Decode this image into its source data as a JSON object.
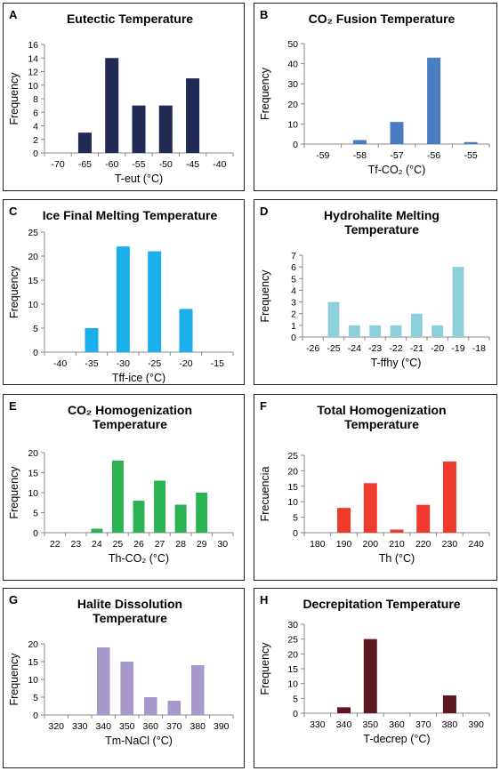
{
  "panels": [
    {
      "letter": "A",
      "title_lines": [
        "Eutectic Temperature"
      ],
      "xlabel": "T-eut (°C)",
      "ylabel": "Frequency",
      "color": "#1f2a55",
      "chart_data": {
        "type": "bar",
        "categories": [
          "-70",
          "-65",
          "-60",
          "-55",
          "-50",
          "-45",
          "-40"
        ],
        "values": [
          0,
          3,
          14,
          7,
          7,
          11,
          0
        ],
        "ylim": [
          0,
          16
        ],
        "yticks": [
          0,
          2,
          4,
          6,
          8,
          10,
          12,
          14,
          16
        ]
      }
    },
    {
      "letter": "B",
      "title_lines": [
        "CO₂ Fusion Temperature"
      ],
      "xlabel": "Tf-CO₂ (°C)",
      "ylabel": "Frequency",
      "color": "#4a7ec2",
      "chart_data": {
        "type": "bar",
        "categories": [
          "-59",
          "-58",
          "-57",
          "-56",
          "-55"
        ],
        "values": [
          0,
          2,
          11,
          43,
          1
        ],
        "ylim": [
          0,
          50
        ],
        "yticks": [
          0,
          10,
          20,
          30,
          40,
          50
        ]
      }
    },
    {
      "letter": "C",
      "title_lines": [
        "Ice Final Melting Temperature"
      ],
      "xlabel": "Tff-ice (°C)",
      "ylabel": "Frequency",
      "color": "#1aaeea",
      "chart_data": {
        "type": "bar",
        "categories": [
          "-40",
          "-35",
          "-30",
          "-25",
          "-20",
          "-15"
        ],
        "values": [
          0,
          5,
          22,
          21,
          9,
          0
        ],
        "ylim": [
          0,
          25
        ],
        "yticks": [
          0,
          5,
          10,
          15,
          20,
          25
        ]
      }
    },
    {
      "letter": "D",
      "title_lines": [
        "Hydrohalite Melting",
        "Temperature"
      ],
      "xlabel": "T-ffhy (°C)",
      "ylabel": "Frequency",
      "color": "#8dd0dc",
      "chart_data": {
        "type": "bar",
        "categories": [
          "-26",
          "-25",
          "-24",
          "-23",
          "-22",
          "-21",
          "-20",
          "-19",
          "-18"
        ],
        "values": [
          0,
          3,
          1,
          1,
          1,
          2,
          1,
          6,
          0
        ],
        "ylim": [
          0,
          7
        ],
        "yticks": [
          0,
          1,
          2,
          3,
          4,
          5,
          6,
          7
        ]
      }
    },
    {
      "letter": "E",
      "title_lines": [
        "CO₂ Homogenization",
        "Temperature"
      ],
      "xlabel": "Th-CO₂ (°C)",
      "ylabel": "Frequency",
      "color": "#2bb353",
      "chart_data": {
        "type": "bar",
        "categories": [
          "22",
          "23",
          "24",
          "25",
          "26",
          "27",
          "28",
          "29",
          "30"
        ],
        "values": [
          0,
          0,
          1,
          18,
          8,
          13,
          7,
          10,
          0
        ],
        "ylim": [
          0,
          20
        ],
        "yticks": [
          0,
          5,
          10,
          15,
          20
        ]
      }
    },
    {
      "letter": "F",
      "title_lines": [
        "Total Homogenization",
        "Temperature"
      ],
      "xlabel": "Th (°C)",
      "ylabel": "Frecuencia",
      "color": "#ee3b2b",
      "chart_data": {
        "type": "bar",
        "categories": [
          "180",
          "190",
          "200",
          "210",
          "220",
          "230",
          "240"
        ],
        "values": [
          0,
          8,
          16,
          1,
          9,
          23,
          0
        ],
        "ylim": [
          0,
          25
        ],
        "yticks": [
          0,
          5,
          10,
          15,
          20,
          25
        ]
      }
    },
    {
      "letter": "G",
      "title_lines": [
        "Halite Dissolution",
        "Temperature"
      ],
      "xlabel": "Tm-NaCl (°C)",
      "ylabel": "Frequency",
      "color": "#a899cb",
      "chart_data": {
        "type": "bar",
        "categories": [
          "320",
          "330",
          "340",
          "350",
          "360",
          "370",
          "380",
          "390"
        ],
        "values": [
          0,
          0,
          19,
          15,
          5,
          4,
          14,
          0
        ],
        "ylim": [
          0,
          20
        ],
        "yticks": [
          0,
          5,
          10,
          15,
          20
        ]
      }
    },
    {
      "letter": "H",
      "title_lines": [
        "Decrepitation Temperature"
      ],
      "xlabel": "T-decrep (°C)",
      "ylabel": "Frequency",
      "color": "#5c1a20",
      "chart_data": {
        "type": "bar",
        "categories": [
          "330",
          "340",
          "350",
          "360",
          "370",
          "380",
          "390"
        ],
        "values": [
          0,
          2,
          25,
          0,
          0,
          6,
          0
        ],
        "ylim": [
          0,
          30
        ],
        "yticks": [
          0,
          5,
          10,
          15,
          20,
          25,
          30
        ]
      }
    }
  ]
}
